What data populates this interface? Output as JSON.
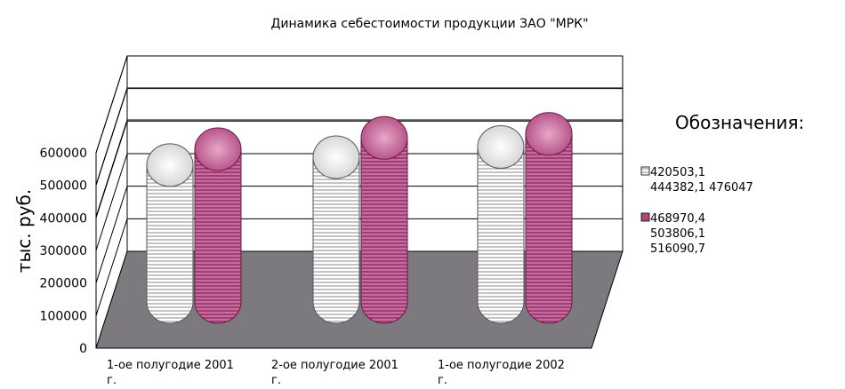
{
  "chart_data": {
    "type": "bar",
    "title": "Динамика себестоимости продукции ЗАО \"МРК\"",
    "ylabel": "тыс. руб.",
    "xlabel": "",
    "ylim": [
      0,
      600000
    ],
    "yticks": [
      "0",
      "100000",
      "200000",
      "300000",
      "400000",
      "500000",
      "600000"
    ],
    "categories": [
      [
        "1-ое полугодие 2001",
        "г."
      ],
      [
        "2-ое полугодие 2001",
        "г."
      ],
      [
        "1-ое полугодие 2002",
        "г."
      ]
    ],
    "series": [
      {
        "name": "420503,1 444382,1 476047",
        "name_lines": [
          "420503,1",
          "444382,1 476047"
        ],
        "values": [
          420503.1,
          444382.1,
          476047
        ],
        "color": "#e8e8e8",
        "stroke": "#555555"
      },
      {
        "name": "468970,4 503806,1 516090,7",
        "name_lines": [
          "468970,4",
          "503806,1",
          "516090,7"
        ],
        "values": [
          468970.4,
          503806.1,
          516090.7
        ],
        "color": "#b0457e",
        "stroke": "#6a1a45"
      }
    ],
    "legend_title": "Обозначения:",
    "legend_position": "right",
    "grid": true,
    "floor_color": "#7d7a7f"
  }
}
